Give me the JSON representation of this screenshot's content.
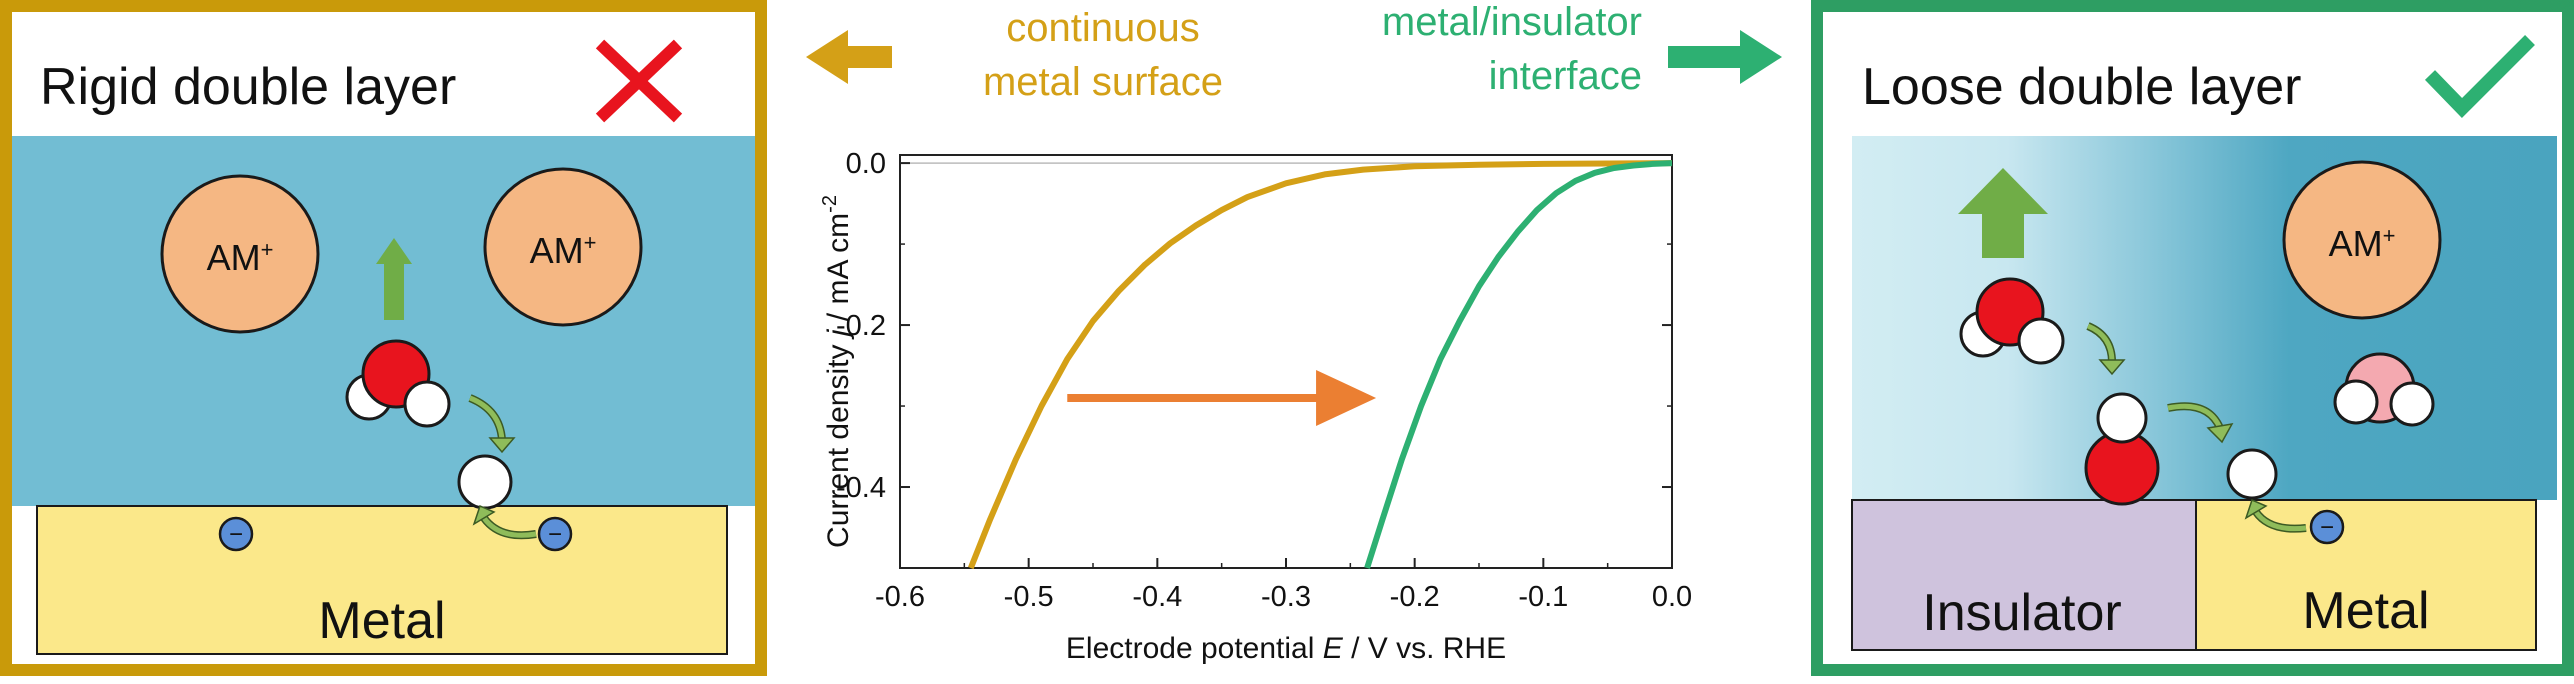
{
  "left_panel": {
    "title": "Rigid double layer",
    "ion1": "AM",
    "ion1_sup": "+",
    "ion2": "AM",
    "ion2_sup": "+",
    "electrode_label": "Metal",
    "electron1": "−",
    "electron2": "−",
    "verdict_icon": "cross-icon",
    "border_color": "#C99A0A",
    "electrolyte_color": "#72BDD3",
    "metal_color": "#FBE88A"
  },
  "middle": {
    "left_caption": [
      "continuous",
      "metal surface"
    ],
    "right_caption": [
      "metal/insulator",
      "interface"
    ],
    "left_color": "#D4A017",
    "right_color": "#2DB072"
  },
  "right_panel": {
    "title": "Loose double layer",
    "ion": "AM",
    "ion_sup": "+",
    "insulator_label": "Insulator",
    "metal_label": "Metal",
    "electron": "−",
    "verdict_icon": "check-icon",
    "border_color": "#2E9E63",
    "insulator_color": "#CFC3DD"
  },
  "chart_data": {
    "type": "line",
    "xlabel_parts": [
      "Electrode potential ",
      "E",
      " / V vs. RHE"
    ],
    "ylabel_parts": [
      "Current density ",
      "j",
      " / mA cm",
      "-2"
    ],
    "xlim": [
      -0.6,
      0.0
    ],
    "ylim": [
      -0.5,
      0.01
    ],
    "xticks": [
      -0.6,
      -0.5,
      -0.4,
      -0.3,
      -0.2,
      -0.1,
      0.0
    ],
    "xtick_labels": [
      "-0.6",
      "-0.5",
      "-0.4",
      "-0.3",
      "-0.2",
      "-0.1",
      "0.0"
    ],
    "yticks": [
      0.0,
      -0.2,
      -0.4
    ],
    "ytick_labels": [
      "0.0",
      "-0.2",
      "-0.4"
    ],
    "series": [
      {
        "color": "#D4A017",
        "x": [
          -0.545,
          -0.53,
          -0.51,
          -0.49,
          -0.47,
          -0.45,
          -0.43,
          -0.41,
          -0.39,
          -0.37,
          -0.35,
          -0.33,
          -0.3,
          -0.27,
          -0.24,
          -0.2,
          -0.15,
          -0.1,
          -0.05,
          0.0
        ],
        "y": [
          -0.5,
          -0.44,
          -0.366,
          -0.3,
          -0.242,
          -0.195,
          -0.158,
          -0.126,
          -0.099,
          -0.077,
          -0.058,
          -0.042,
          -0.025,
          -0.014,
          -0.008,
          -0.004,
          -0.002,
          -0.001,
          -0.0005,
          0.0
        ]
      },
      {
        "color": "#2DB072",
        "x": [
          -0.237,
          -0.225,
          -0.21,
          -0.195,
          -0.18,
          -0.165,
          -0.15,
          -0.135,
          -0.12,
          -0.105,
          -0.09,
          -0.075,
          -0.06,
          -0.045,
          -0.03,
          -0.015,
          0.0
        ],
        "y": [
          -0.5,
          -0.44,
          -0.366,
          -0.3,
          -0.242,
          -0.195,
          -0.152,
          -0.116,
          -0.085,
          -0.058,
          -0.037,
          -0.022,
          -0.012,
          -0.006,
          -0.003,
          -0.001,
          0.0
        ]
      }
    ],
    "annotation": {
      "type": "arrow",
      "color": "#EB7F32",
      "from": [
        -0.47,
        -0.29
      ],
      "to": [
        -0.23,
        -0.29
      ]
    }
  }
}
